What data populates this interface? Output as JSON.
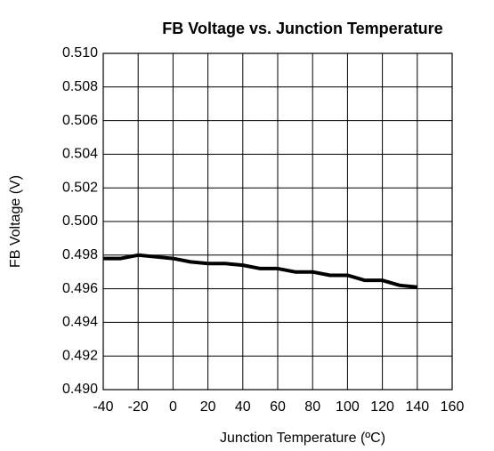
{
  "chart_data": {
    "type": "line",
    "title": "FB Voltage vs. Junction Temperature",
    "xlabel": "Junction Temperature (ºC)",
    "ylabel": "FB Voltage (V)",
    "x": [
      -40,
      -30,
      -20,
      -10,
      0,
      10,
      20,
      30,
      40,
      50,
      60,
      70,
      80,
      90,
      100,
      110,
      120,
      130,
      140
    ],
    "series": [
      {
        "name": "FB Voltage",
        "color": "#000000",
        "values": [
          0.4978,
          0.4978,
          0.498,
          0.4979,
          0.4978,
          0.4976,
          0.4975,
          0.4975,
          0.4974,
          0.4972,
          0.4972,
          0.497,
          0.497,
          0.4968,
          0.4968,
          0.4965,
          0.4965,
          0.4962,
          0.4961
        ]
      }
    ],
    "xlim": [
      -40,
      160
    ],
    "xticks": [
      -40,
      -20,
      0,
      20,
      40,
      60,
      80,
      100,
      120,
      140,
      160
    ],
    "ylim": [
      0.49,
      0.51
    ],
    "yticks": [
      {
        "value": 0.49,
        "label": "0.490"
      },
      0.492,
      0.494,
      0.496,
      0.498,
      {
        "value": 0.5,
        "label": "0.500"
      },
      0.502,
      0.504,
      0.506,
      0.508,
      {
        "value": 0.51,
        "label": "0.510"
      }
    ],
    "grid": true
  }
}
